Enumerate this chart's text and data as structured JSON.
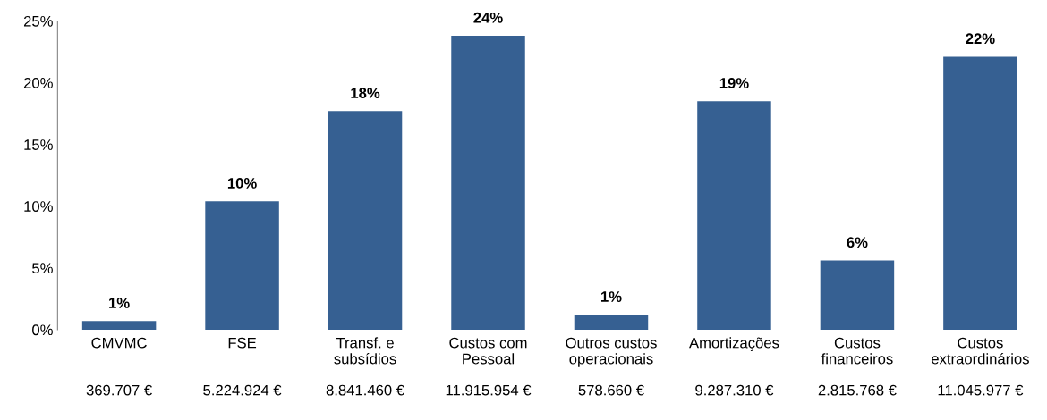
{
  "chart_data": {
    "type": "bar",
    "categories": [
      "CMVMC",
      "FSE",
      "Transf. e\nsubsídios",
      "Custos com\nPessoal",
      "Outros custos\noperacionais",
      "Amortizações",
      "Custos\nfinanceiros",
      "Custos\nextraordinários"
    ],
    "values": [
      0.7,
      10.4,
      17.7,
      23.8,
      1.2,
      18.5,
      5.6,
      22.1
    ],
    "value_labels": [
      "1%",
      "10%",
      "18%",
      "24%",
      "1%",
      "19%",
      "6%",
      "22%"
    ],
    "color": "#366092",
    "ylim": [
      0,
      25
    ],
    "yticks": [
      {
        "value": 0,
        "label": "0%"
      },
      {
        "value": 5,
        "label": "5%"
      },
      {
        "value": 10,
        "label": "10%"
      },
      {
        "value": 15,
        "label": "15%"
      },
      {
        "value": 20,
        "label": "20%"
      },
      {
        "value": 25,
        "label": "25%"
      }
    ],
    "annotations": [
      "369.707 €",
      "5.224.924 €",
      "8.841.460 €",
      "11.915.954 €",
      "578.660 €",
      "9.287.310 €",
      "2.815.768 €",
      "11.045.977 €"
    ],
    "grid": false,
    "legend": false
  }
}
